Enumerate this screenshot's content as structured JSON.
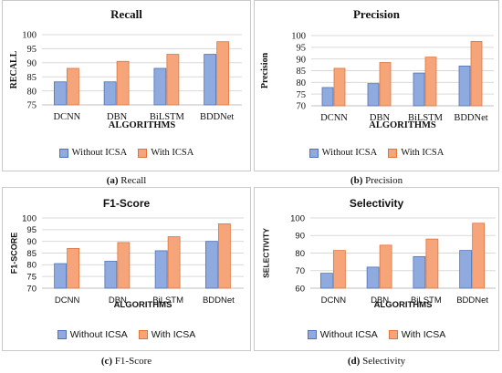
{
  "colors": {
    "without_fill": "#8eaadf",
    "without_stroke": "#4f72b8",
    "with_fill": "#f5a579",
    "with_stroke": "#e0743a",
    "grid": "#d9d9d9",
    "axis": "#bfbfbf",
    "text": "#111111"
  },
  "legend": {
    "without": "Without ICSA",
    "with": "With ICSA"
  },
  "captions": [
    {
      "letter": "(a)",
      "text": "Recall"
    },
    {
      "letter": "(b)",
      "text": "Precision"
    },
    {
      "letter": "(c)",
      "text": "F1-Score"
    },
    {
      "letter": "(d)",
      "text": "Selectivity"
    }
  ],
  "chart_data": [
    {
      "type": "bar",
      "title": "Recall",
      "xlabel": "ALGORITHMS",
      "ylabel": "RECALL",
      "categories": [
        "DCNN",
        "DBN",
        "BiLSTM",
        "BDDNet"
      ],
      "ylim": [
        75,
        100
      ],
      "yticks": [
        75,
        80,
        85,
        90,
        95,
        100
      ],
      "grid": true,
      "legend_position": "bottom",
      "series": [
        {
          "name": "Without ICSA",
          "values": [
            83.2,
            83.2,
            88.0,
            93.0
          ]
        },
        {
          "name": "With ICSA",
          "values": [
            88.0,
            90.5,
            93.0,
            97.5
          ]
        }
      ]
    },
    {
      "type": "bar",
      "title": "Precision",
      "xlabel": "ALGORITHMS",
      "ylabel": "Precision",
      "categories": [
        "DCNN",
        "DBN",
        "BiLSTM",
        "BDDNet"
      ],
      "ylim": [
        70,
        100
      ],
      "yticks": [
        70,
        75,
        80,
        85,
        90,
        95,
        100
      ],
      "grid": true,
      "legend_position": "bottom",
      "series": [
        {
          "name": "Without ICSA",
          "values": [
            77.8,
            79.5,
            84.0,
            87.0
          ]
        },
        {
          "name": "With ICSA",
          "values": [
            86.0,
            88.5,
            90.8,
            97.5
          ]
        }
      ]
    },
    {
      "type": "bar",
      "title": "F1-Score",
      "xlabel": "ALGORITHMS",
      "ylabel": "F1-SCORE",
      "categories": [
        "DCNN",
        "DBN",
        "BiLSTM",
        "BDDNet"
      ],
      "ylim": [
        70,
        100
      ],
      "yticks": [
        70,
        75,
        80,
        85,
        90,
        95,
        100
      ],
      "grid": true,
      "legend_position": "bottom",
      "series": [
        {
          "name": "Without ICSA",
          "values": [
            80.5,
            81.5,
            86.0,
            90.0
          ]
        },
        {
          "name": "With ICSA",
          "values": [
            87.0,
            89.5,
            92.0,
            97.5
          ]
        }
      ]
    },
    {
      "type": "bar",
      "title": "Selectivity",
      "xlabel": "ALGORITHMS",
      "ylabel": "SELECTIVITY",
      "categories": [
        "DCNN",
        "DBN",
        "BiLSTM",
        "BDDNet"
      ],
      "ylim": [
        60,
        100
      ],
      "yticks": [
        60,
        70,
        80,
        90,
        100
      ],
      "grid": true,
      "legend_position": "bottom",
      "series": [
        {
          "name": "Without ICSA",
          "values": [
            68.5,
            72.0,
            78.0,
            81.5
          ]
        },
        {
          "name": "With ICSA",
          "values": [
            81.5,
            84.5,
            88.0,
            97.0
          ]
        }
      ]
    }
  ]
}
